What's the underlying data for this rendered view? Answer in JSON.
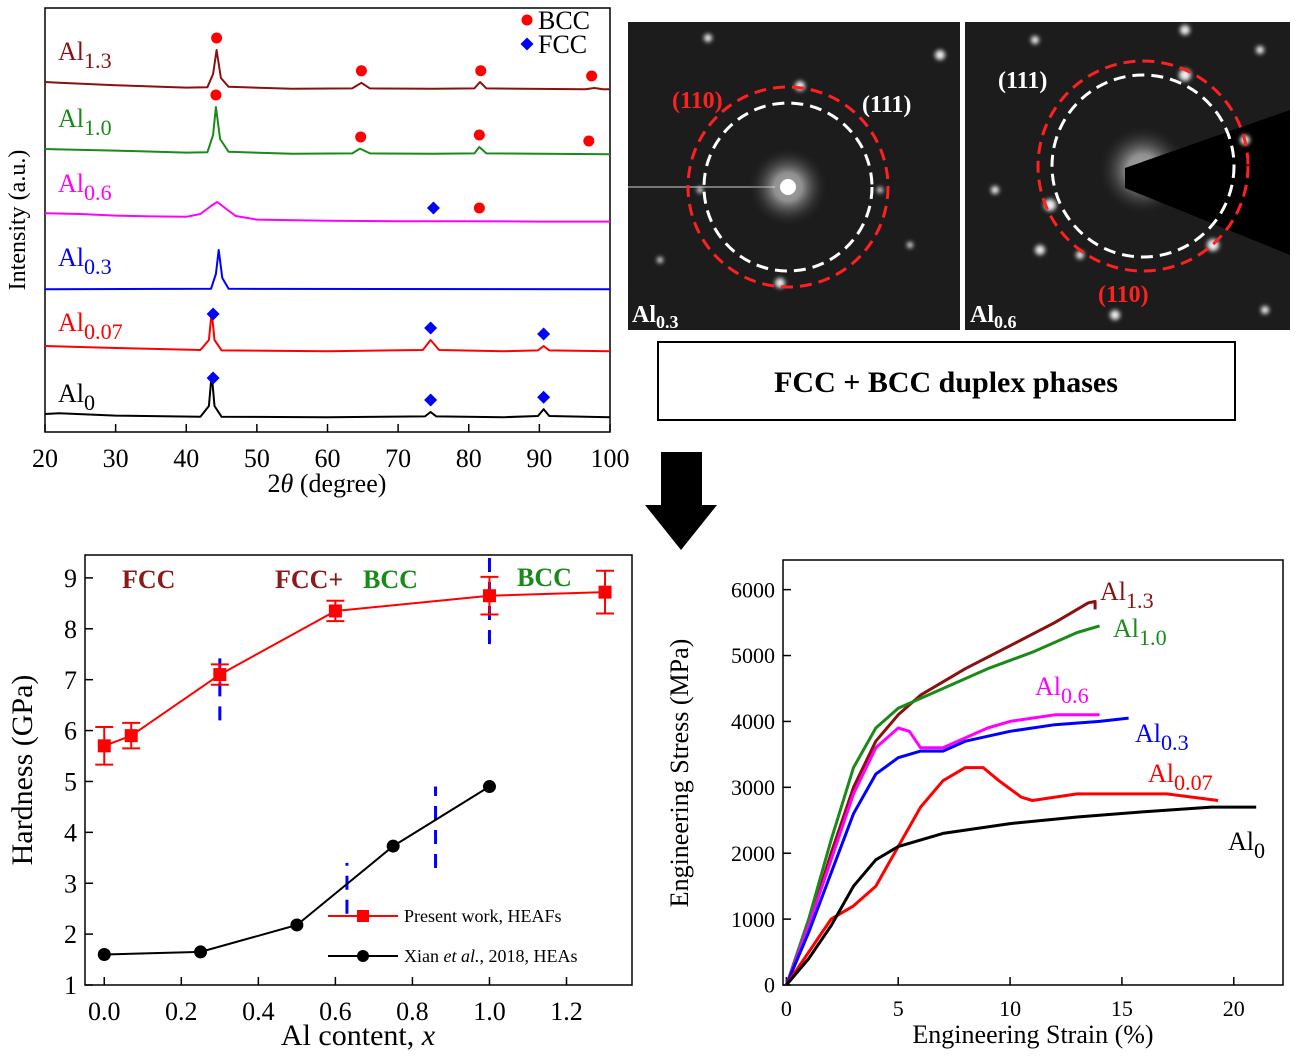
{
  "chart_data": [
    {
      "type": "line",
      "xlabel": [
        "2",
        "θ",
        " (degree)"
      ],
      "ylabel": "Intensity (a.u.)",
      "xlim": [
        20,
        100
      ],
      "xticks": [
        20,
        30,
        40,
        50,
        60,
        70,
        80,
        90,
        100
      ],
      "markers": [
        {
          "name": "BCC",
          "color": "#ff0000",
          "symbol": "circle"
        },
        {
          "name": "FCC",
          "color": "#0000ff",
          "symbol": "diamond"
        }
      ],
      "series": [
        {
          "name": "Al",
          "subscript": "1.3",
          "color": "#8b1010",
          "x": [
            20,
            22,
            30,
            40,
            43,
            43.8,
            44.3,
            44.9,
            46,
            55,
            63.5,
            64.8,
            66,
            75,
            80.8,
            81.6,
            82.5,
            96.5,
            97.8,
            99,
            100
          ],
          "values": [
            2,
            1.8,
            1.2,
            0.6,
            0.7,
            4,
            10,
            3,
            0.8,
            0.3,
            0.4,
            1.8,
            0.4,
            0.3,
            0.4,
            2,
            0.4,
            0.2,
            0.5,
            0.2,
            0.2
          ],
          "BCC": [
            44.3,
            64.8,
            81.7,
            97.4
          ],
          "FCC": []
        },
        {
          "name": "Al",
          "subscript": "1.0",
          "color": "#1a8a1a",
          "x": [
            20,
            22,
            30,
            40,
            43,
            43.8,
            44.2,
            44.8,
            46,
            55,
            63.5,
            64.6,
            66,
            75,
            80.8,
            81.5,
            82.5,
            100
          ],
          "values": [
            1.5,
            1.4,
            1.1,
            0.6,
            0.7,
            5,
            12,
            4,
            0.8,
            0.3,
            0.4,
            1.6,
            0.4,
            0.3,
            0.4,
            2,
            0.4,
            0.2
          ],
          "BCC": [
            44.2,
            64.7,
            81.5,
            97
          ],
          "FCC": []
        },
        {
          "name": "Al",
          "subscript": "0.6",
          "color": "#ff00ff",
          "x": [
            20,
            25,
            30,
            35,
            40,
            42,
            43.5,
            44.4,
            45.5,
            47,
            50,
            60,
            70,
            80,
            90,
            100
          ],
          "values": [
            2.2,
            2,
            1.6,
            1.4,
            1.3,
            2,
            4,
            5,
            3.5,
            1.5,
            0.6,
            0.3,
            0.2,
            0.2,
            0.1,
            0.1
          ],
          "BCC": [
            81.5
          ],
          "FCC": [
            75
          ]
        },
        {
          "name": "Al",
          "subscript": "0.3",
          "color": "#0000ff",
          "x": [
            20,
            43.5,
            44.2,
            44.6,
            45.1,
            46,
            100
          ],
          "values": [
            0.2,
            0.3,
            4,
            10,
            3,
            0.3,
            0.2
          ],
          "BCC": [],
          "FCC": []
        },
        {
          "name": "Al",
          "subscript": "0.07",
          "color": "#ff0000",
          "x": [
            20,
            30,
            42,
            43.2,
            43.6,
            44,
            45,
            60,
            73.5,
            74.6,
            75.8,
            85,
            89.8,
            90.6,
            91.4,
            100
          ],
          "values": [
            1.5,
            1,
            0.5,
            3,
            10,
            3,
            0.4,
            0.2,
            0.5,
            3,
            0.5,
            0.2,
            0.4,
            1.5,
            0.4,
            0.2
          ],
          "BCC": [],
          "FCC": [
            43.8,
            74.6,
            90.6
          ]
        },
        {
          "name": "Al",
          "subscript": "0",
          "color": "#000000",
          "x": [
            20,
            22,
            30,
            42,
            43.2,
            43.6,
            44,
            45,
            60,
            73.8,
            74.6,
            75.4,
            85,
            89.8,
            90.6,
            91.4,
            100
          ],
          "values": [
            1,
            1.2,
            0.6,
            0.3,
            3,
            11,
            3,
            0.3,
            0.2,
            0.4,
            1.5,
            0.4,
            0.2,
            0.5,
            2.2,
            0.5,
            0.2
          ],
          "BCC": [],
          "FCC": [
            43.8,
            74.6,
            90.6
          ]
        }
      ]
    },
    {
      "type": "line",
      "xlabel": [
        "Al content, ",
        "x"
      ],
      "ylabel": "Hardness (GPa)",
      "xlim": [
        -0.05,
        1.37
      ],
      "xticks": [
        {
          "value": 0,
          "label": "0.0"
        },
        0.2,
        0.4,
        0.6,
        0.8,
        {
          "value": 1,
          "label": "1.0"
        },
        1.2
      ],
      "ylim": [
        1,
        9.45
      ],
      "yticks": [
        1,
        2,
        3,
        4,
        5,
        6,
        7,
        8,
        9
      ],
      "series": [
        {
          "name": [
            "Present work, HEAFs"
          ],
          "color": "#ff0000",
          "marker": "square",
          "x": [
            0,
            0.07,
            0.3,
            0.6,
            1.0,
            1.3
          ],
          "values": [
            5.7,
            5.9,
            7.1,
            8.35,
            8.65,
            8.72
          ],
          "errors": [
            0.37,
            0.25,
            0.2,
            0.2,
            0.37,
            0.42
          ]
        },
        {
          "name": [
            "Xian ",
            "et al.",
            ", 2018, HEAs"
          ],
          "color": "#000000",
          "marker": "circle",
          "x": [
            0,
            0.25,
            0.5,
            0.75,
            1.0
          ],
          "values": [
            1.6,
            1.65,
            2.18,
            3.73,
            4.9
          ]
        }
      ],
      "phase_boundaries": [
        {
          "x": 0.3,
          "y": [
            6.2,
            7.6
          ]
        },
        {
          "x": 1.0,
          "y": [
            7.7,
            9.45
          ]
        },
        {
          "x": 0.63,
          "y": [
            2.4,
            3.4
          ]
        },
        {
          "x": 0.86,
          "y": [
            3.3,
            4.9
          ]
        }
      ],
      "boundary_color": "#0000ff",
      "annotations": [
        {
          "text": "FCC",
          "color": "#8b1a1a"
        },
        {
          "text": "FCC+",
          "color": "#8b1a1a"
        },
        {
          "text": "BCC",
          "color": "#1a8a1a"
        },
        {
          "text": "BCC",
          "color": "#1a8a1a"
        }
      ]
    },
    {
      "type": "line",
      "xlabel": [
        "Engineering Strain (%)"
      ],
      "ylabel": "Engineering Stress (MPa)",
      "xlim": [
        -0.15,
        22.2
      ],
      "xticks": [
        0,
        5,
        10,
        15,
        20
      ],
      "ylim": [
        0,
        6450
      ],
      "yticks": [
        0,
        1000,
        2000,
        3000,
        4000,
        5000,
        6000
      ],
      "series": [
        {
          "name": "Al",
          "subscript": "1.3",
          "color": "#8b1010",
          "x": [
            0,
            1,
            2,
            3,
            4,
            5,
            6,
            8,
            10,
            12,
            13.5,
            13.8,
            13.8
          ],
          "values": [
            0,
            900,
            2000,
            3000,
            3700,
            4100,
            4400,
            4800,
            5150,
            5500,
            5800,
            5820,
            5700
          ]
        },
        {
          "name": "Al",
          "subscript": "1.0",
          "color": "#1a8a1a",
          "x": [
            0,
            1,
            2,
            3,
            4,
            5,
            7,
            9,
            11,
            13,
            14
          ],
          "values": [
            0,
            1000,
            2200,
            3300,
            3900,
            4200,
            4500,
            4800,
            5050,
            5350,
            5450
          ]
        },
        {
          "name": "Al",
          "subscript": "0.6",
          "color": "#ff00ff",
          "x": [
            0,
            1,
            2,
            3,
            4,
            5,
            5.5,
            6,
            7,
            8,
            9,
            10,
            11,
            12,
            14
          ],
          "values": [
            0,
            900,
            1900,
            2900,
            3600,
            3900,
            3850,
            3600,
            3600,
            3750,
            3900,
            4000,
            4050,
            4100,
            4100
          ]
        },
        {
          "name": "Al",
          "subscript": "0.3",
          "color": "#0000ff",
          "x": [
            0,
            1,
            2,
            3,
            4,
            5,
            6,
            7,
            8,
            10,
            12,
            14,
            15.3
          ],
          "values": [
            0,
            800,
            1700,
            2600,
            3200,
            3450,
            3550,
            3550,
            3700,
            3850,
            3950,
            4000,
            4050
          ]
        },
        {
          "name": "Al",
          "subscript": "0.07",
          "color": "#ff0000",
          "x": [
            0,
            1,
            2,
            3,
            4,
            5,
            6,
            7,
            8,
            8.8,
            9.5,
            10.5,
            11,
            13,
            15,
            17,
            19.3
          ],
          "values": [
            0,
            500,
            1000,
            1200,
            1500,
            2100,
            2700,
            3100,
            3300,
            3300,
            3100,
            2850,
            2800,
            2900,
            2900,
            2900,
            2800
          ]
        },
        {
          "name": "Al",
          "subscript": "0",
          "color": "#000000",
          "x": [
            0,
            1,
            2,
            3,
            4,
            5,
            7,
            10,
            13,
            16,
            19,
            21
          ],
          "values": [
            0,
            400,
            900,
            1500,
            1900,
            2100,
            2300,
            2450,
            2550,
            2630,
            2700,
            2700
          ]
        }
      ]
    }
  ],
  "saed": {
    "left": {
      "ring1": "(110)",
      "ring2": "(111)",
      "name": "Al",
      "subscript": "0.3"
    },
    "right": {
      "ring1": "(110)",
      "ring2": "(111)",
      "name": "Al",
      "subscript": "0.6"
    }
  },
  "summary": "FCC + BCC duplex phases"
}
